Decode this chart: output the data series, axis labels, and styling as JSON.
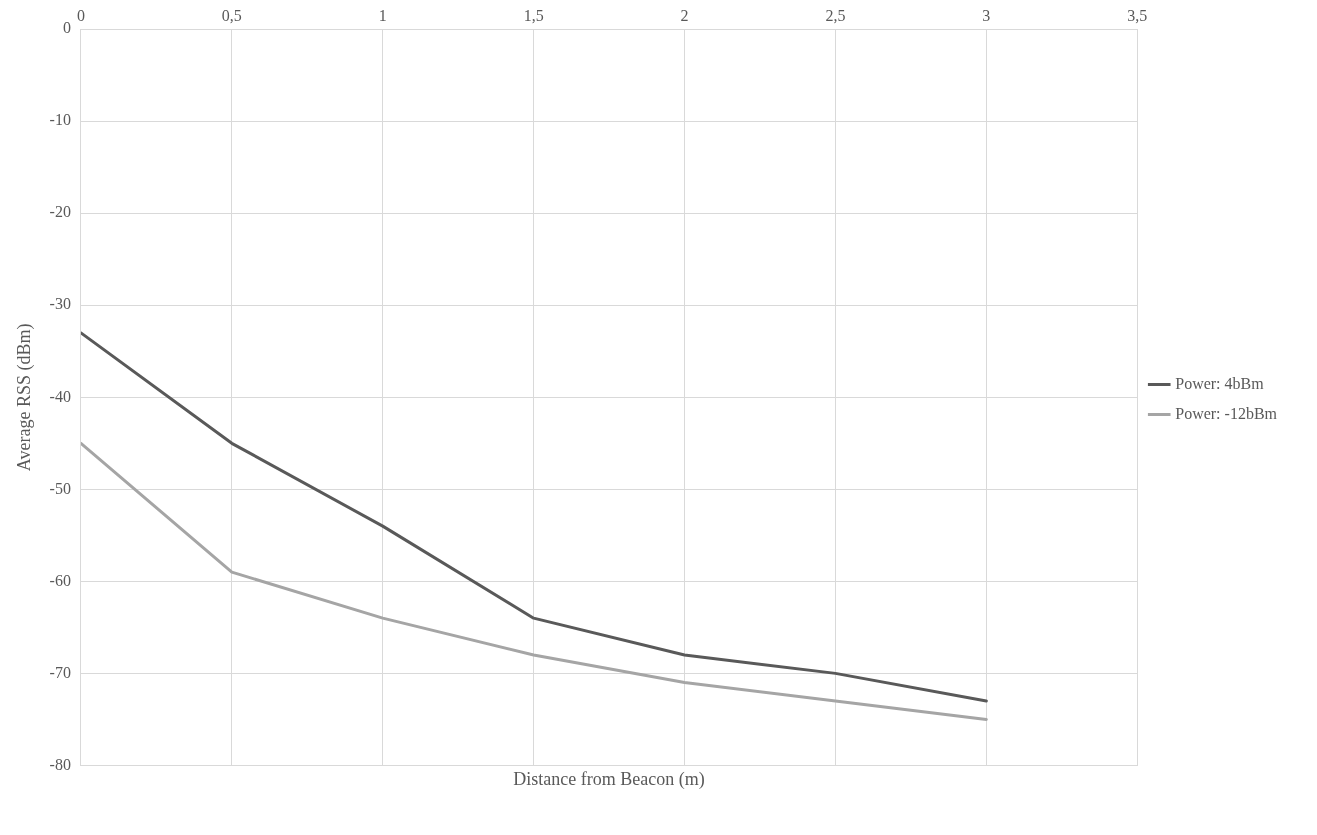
{
  "chart_data": {
    "type": "line",
    "xlabel": "Distance from Beacon (m)",
    "ylabel": "Average RSS (dBm)",
    "x": [
      0,
      0.5,
      1,
      1.5,
      2,
      2.5,
      3
    ],
    "series": [
      {
        "name": "Power: 4bBm",
        "color": "#595959",
        "values": [
          -33,
          -45,
          -54,
          -64,
          -68,
          -70,
          -73
        ]
      },
      {
        "name": "Power: -12bBm",
        "color": "#a5a5a5",
        "values": [
          -45,
          -59,
          -64,
          -68,
          -71,
          -73,
          -75
        ]
      }
    ],
    "xlim": [
      0,
      3.5
    ],
    "xticks": [
      0,
      {
        "value": 0.5,
        "label": "0,5"
      },
      1,
      {
        "value": 1.5,
        "label": "1,5"
      },
      2,
      {
        "value": 2.5,
        "label": "2,5"
      },
      3,
      {
        "value": 3.5,
        "label": "3,5"
      }
    ],
    "ylim": [
      -80,
      0
    ],
    "yticks": [
      -80,
      -70,
      -60,
      -50,
      -40,
      -30,
      -20,
      -10,
      0
    ],
    "grid": true,
    "legend": "right",
    "marker": "none",
    "line_style": "solid"
  }
}
